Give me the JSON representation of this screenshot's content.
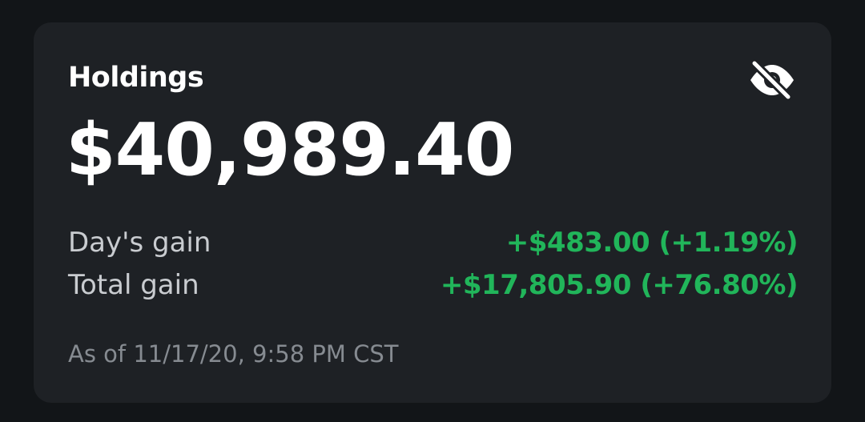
{
  "holdings": {
    "title": "Holdings",
    "amount": "$40,989.40",
    "visibility_icon": "eye-off-icon",
    "days_gain": {
      "label": "Day's gain",
      "value": "+$483.00 (+1.19%)"
    },
    "total_gain": {
      "label": "Total gain",
      "value": "+$17,805.90 (+76.80%)"
    },
    "as_of": "As of 11/17/20, 9:58 PM CST"
  },
  "colors": {
    "background": "#121518",
    "card": "#1e2125",
    "gain_positive": "#21b55a",
    "label": "#c9ccd0",
    "muted": "#868b91"
  }
}
